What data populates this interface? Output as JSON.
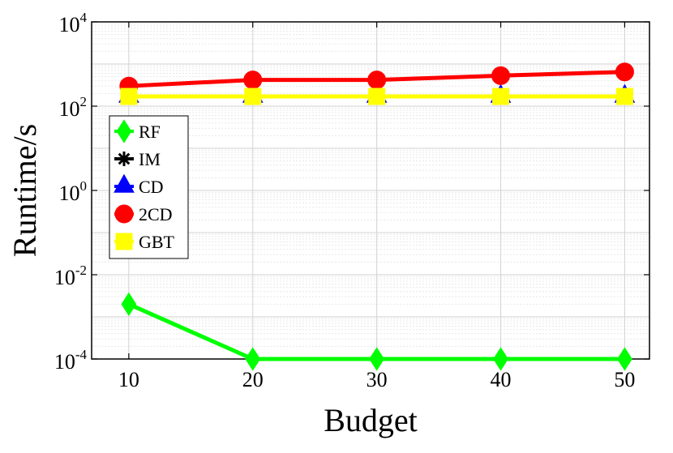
{
  "chart_data": {
    "type": "line",
    "xlabel": "Budget",
    "ylabel": "Runtime/s",
    "x": [
      10,
      20,
      30,
      40,
      50
    ],
    "xlim": [
      7,
      52
    ],
    "ylim": [
      0.0001,
      10000
    ],
    "yscale": "log",
    "x_ticks": [
      "10",
      "20",
      "30",
      "40",
      "50"
    ],
    "y_ticks": [
      {
        "base": "10",
        "exp": "-4",
        "value": 0.0001
      },
      {
        "base": "10",
        "exp": "-2",
        "value": 0.01
      },
      {
        "base": "10",
        "exp": "0",
        "value": 1
      },
      {
        "base": "10",
        "exp": "2",
        "value": 100
      },
      {
        "base": "10",
        "exp": "4",
        "value": 10000
      }
    ],
    "grid": true,
    "legend_position": "left",
    "series": [
      {
        "name": "RF",
        "color": "#00ff00",
        "marker": "diamond",
        "values": [
          0.002,
          0.0001,
          0.0001,
          0.0001,
          0.0001
        ]
      },
      {
        "name": "IM",
        "color": "#000000",
        "marker": "asterisk",
        "values": [
          170,
          170,
          170,
          170,
          170
        ]
      },
      {
        "name": "CD",
        "color": "#0000ff",
        "marker": "triangle",
        "values": [
          170,
          170,
          170,
          170,
          170
        ]
      },
      {
        "name": "2CD",
        "color": "#ff0000",
        "marker": "circle",
        "values": [
          300,
          420,
          420,
          530,
          650
        ]
      },
      {
        "name": "GBT",
        "color": "#ffff00",
        "marker": "square",
        "values": [
          170,
          170,
          170,
          170,
          170
        ]
      }
    ]
  }
}
